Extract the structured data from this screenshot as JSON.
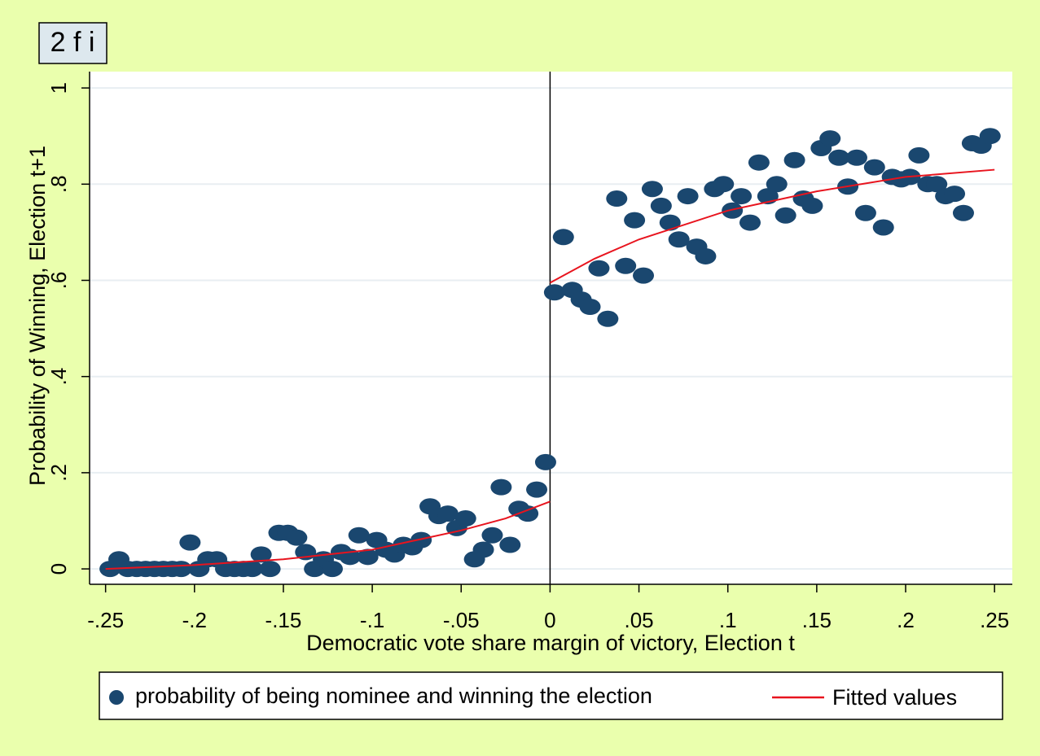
{
  "chart_data": {
    "type": "scatter",
    "title": "2 f i",
    "x_label": "Democratic vote share margin of victory, Election t",
    "y_label": "Probability of  Winning, Election t+1",
    "xlim": [
      -0.259,
      0.26
    ],
    "ylim": [
      -0.032,
      1.034
    ],
    "xticks": [
      {
        "value": -0.25,
        "label": "-.25"
      },
      {
        "value": -0.2,
        "label": "-.2"
      },
      {
        "value": -0.15,
        "label": "-.15"
      },
      {
        "value": -0.1,
        "label": "-.1"
      },
      {
        "value": -0.05,
        "label": "-.05"
      },
      0,
      {
        "value": 0.05,
        "label": ".05"
      },
      {
        "value": 0.1,
        "label": ".1"
      },
      {
        "value": 0.15,
        "label": ".15"
      },
      {
        "value": 0.2,
        "label": ".2"
      },
      {
        "value": 0.25,
        "label": ".25"
      }
    ],
    "yticks": [
      0,
      {
        "value": 0.2,
        "label": ".2"
      },
      {
        "value": 0.4,
        "label": ".4"
      },
      {
        "value": 0.6,
        "label": ".6"
      },
      {
        "value": 0.8,
        "label": ".8"
      },
      1
    ],
    "grid": true,
    "xline": 0,
    "series": [
      {
        "name": "probability of being nominee and winning the election",
        "type": "scatter",
        "color": "#1a476f",
        "x": [
          -0.2475,
          -0.2425,
          -0.2375,
          -0.2325,
          -0.2275,
          -0.2225,
          -0.2175,
          -0.2125,
          -0.2075,
          -0.2025,
          -0.1975,
          -0.1925,
          -0.1875,
          -0.1825,
          -0.1775,
          -0.1725,
          -0.1675,
          -0.1625,
          -0.1575,
          -0.1525,
          -0.1475,
          -0.1425,
          -0.1375,
          -0.1325,
          -0.1275,
          -0.1225,
          -0.1175,
          -0.1125,
          -0.1075,
          -0.1025,
          -0.0975,
          -0.0925,
          -0.0875,
          -0.0825,
          -0.0775,
          -0.0725,
          -0.0675,
          -0.0625,
          -0.0575,
          -0.0525,
          -0.0475,
          -0.0425,
          -0.0375,
          -0.0325,
          -0.0275,
          -0.0225,
          -0.0175,
          -0.0125,
          -0.0075,
          -0.0025,
          0.0025,
          0.0075,
          0.0125,
          0.0175,
          0.0225,
          0.0275,
          0.0325,
          0.0375,
          0.0425,
          0.0475,
          0.0525,
          0.0575,
          0.0625,
          0.0675,
          0.0725,
          0.0775,
          0.0825,
          0.0875,
          0.0925,
          0.0975,
          0.1025,
          0.1075,
          0.1125,
          0.1175,
          0.1225,
          0.1275,
          0.1325,
          0.1375,
          0.1425,
          0.1475,
          0.1525,
          0.1575,
          0.1625,
          0.1675,
          0.1725,
          0.1775,
          0.1825,
          0.1875,
          0.1925,
          0.1975,
          0.2025,
          0.2075,
          0.2125,
          0.2175,
          0.2225,
          0.2275,
          0.2325,
          0.2375,
          0.2425,
          0.2475
        ],
        "values": [
          0,
          0.02,
          0,
          0,
          0,
          0,
          0,
          0,
          0,
          0.055,
          0,
          0.02,
          0.02,
          0,
          0,
          0,
          0,
          0.03,
          0,
          0.075,
          0.075,
          0.065,
          0.035,
          0,
          0.02,
          0,
          0.035,
          0.025,
          0.07,
          0.025,
          0.06,
          0.04,
          0.03,
          0.05,
          0.045,
          0.06,
          0.13,
          0.11,
          0.115,
          0.085,
          0.105,
          0.02,
          0.04,
          0.07,
          0.17,
          0.05,
          0.125,
          0.115,
          0.165,
          0.222,
          0.575,
          0.69,
          0.58,
          0.56,
          0.545,
          0.625,
          0.52,
          0.77,
          0.63,
          0.725,
          0.61,
          0.79,
          0.755,
          0.72,
          0.685,
          0.775,
          0.67,
          0.65,
          0.79,
          0.8,
          0.745,
          0.775,
          0.72,
          0.845,
          0.775,
          0.8,
          0.735,
          0.85,
          0.77,
          0.755,
          0.875,
          0.895,
          0.855,
          0.795,
          0.855,
          0.74,
          0.835,
          0.71,
          0.815,
          0.81,
          0.815,
          0.86,
          0.8,
          0.8,
          0.775,
          0.78,
          0.74,
          0.885,
          0.88,
          0.9
        ]
      },
      {
        "name": "Fitted values",
        "type": "line",
        "color": "#e8141e",
        "x": [
          -0.25,
          -0.2,
          -0.15,
          -0.1,
          -0.05,
          -0.025,
          0,
          0,
          0,
          0.025,
          0.05,
          0.1,
          0.15,
          0.2,
          0.25
        ],
        "values": [
          0,
          0.008,
          0.02,
          0.04,
          0.08,
          0.105,
          0.14,
          null,
          0.595,
          0.645,
          0.685,
          0.745,
          0.785,
          0.815,
          0.83
        ]
      }
    ]
  }
}
